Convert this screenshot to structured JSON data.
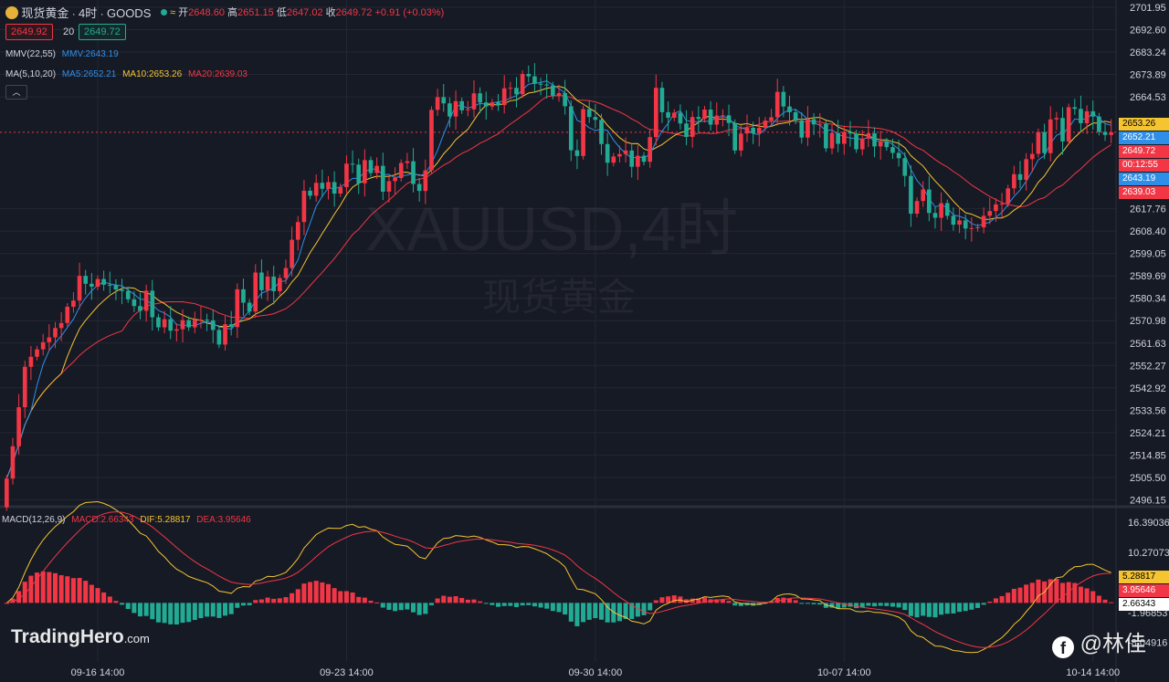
{
  "header": {
    "symbol_name": "现货黄金",
    "timeframe": "4时",
    "source": "GOODS",
    "open_label": "开",
    "open": "2648.60",
    "high_label": "高",
    "high": "2651.15",
    "low_label": "低",
    "low": "2647.02",
    "close_label": "收",
    "close": "2649.72",
    "change": "+0.91 (+0.03%)",
    "sell_price": "2649.92",
    "spread": "20",
    "buy_price": "2649.72"
  },
  "indicators": {
    "mmv_label": "MMV(22,55)",
    "mmv_value": "MMV:2643.19",
    "ma_label": "MA(5,10,20)",
    "ma5": "MA5:2652.21",
    "ma10": "MA10:2653.26",
    "ma20": "MA20:2639.03",
    "macd_label": "MACD(12,26,9)",
    "macd": "MACD:2.66343",
    "dif": "DIF:5.28817",
    "dea": "DEA:3.95646"
  },
  "watermark": {
    "line1": "XAUUSD,4时",
    "line2": "现货黄金"
  },
  "branding": {
    "left": "TradingHero",
    "left_suffix": ".com",
    "right": "@林佳"
  },
  "axis_tags": [
    {
      "text": "2653.26",
      "bg": "#f5c431",
      "fg": "#000000",
      "y": 2653.26
    },
    {
      "text": "2652.21",
      "bg": "#2f8fe8",
      "fg": "#ffffff",
      "y": 2652.21
    },
    {
      "text": "2649.72",
      "bg": "#f23645",
      "fg": "#ffffff",
      "y": 2649.72
    },
    {
      "text": "00:12:55",
      "bg": "#f23645",
      "fg": "#ffffff",
      "y": 2647.4
    },
    {
      "text": "2643.19",
      "bg": "#2f8fe8",
      "fg": "#ffffff",
      "y": 2643.19
    },
    {
      "text": "2639.03",
      "bg": "#f23645",
      "fg": "#ffffff",
      "y": 2639.03
    }
  ],
  "macd_tags": [
    {
      "text": "5.28817",
      "bg": "#f5c431",
      "fg": "#000000",
      "y": 5.28817
    },
    {
      "text": "3.95646",
      "bg": "#f23645",
      "fg": "#ffffff",
      "y": 3.95646
    },
    {
      "text": "2.66343",
      "bg": "#ffffff",
      "fg": "#000000",
      "y": 2.66343
    }
  ],
  "colors": {
    "up": "#f23645",
    "down": "#22ab94",
    "ma5": "#2f8fe8",
    "ma10": "#f5c431",
    "ma20": "#f23645",
    "macd_up": "#f23645",
    "macd_down": "#22ab94",
    "dif": "#f5c431",
    "dea": "#f23645"
  },
  "chart_data": [
    {
      "type": "candlestick",
      "title": "XAUUSD,4时",
      "y_ticks": [
        "2701.95",
        "2692.60",
        "2683.24",
        "2673.89",
        "2664.53",
        "2617.76",
        "2608.40",
        "2599.05",
        "2589.69",
        "2580.34",
        "2570.98",
        "2561.63",
        "2552.27",
        "2542.92",
        "2533.56",
        "2524.21",
        "2514.85",
        "2505.50",
        "2496.15"
      ],
      "ylim": [
        2494.0,
        2705.0
      ],
      "x_ticks": [
        {
          "label": "09-16 14:00",
          "index": 15
        },
        {
          "label": "09-23 14:00",
          "index": 56
        },
        {
          "label": "09-30 14:00",
          "index": 97
        },
        {
          "label": "10-07 14:00",
          "index": 138
        },
        {
          "label": "10-14 14:00",
          "index": 179
        }
      ],
      "closes": [
        2505.0,
        2518.5,
        2534.8,
        2551.7,
        2555.9,
        2559.0,
        2562.0,
        2564.0,
        2567.9,
        2570.0,
        2576.8,
        2579.4,
        2589.7,
        2586.4,
        2585.2,
        2588.4,
        2586.0,
        2585.8,
        2584.0,
        2583.4,
        2579.9,
        2577.1,
        2575.1,
        2583.5,
        2572.4,
        2568.2,
        2571.6,
        2566.8,
        2567.4,
        2571.2,
        2568.2,
        2571.3,
        2571.4,
        2571.1,
        2567.1,
        2561.0,
        2569.5,
        2568.3,
        2584.1,
        2578.5,
        2574.8,
        2591.1,
        2583.7,
        2589.4,
        2583.3,
        2588.8,
        2593.0,
        2604.8,
        2612.2,
        2625.3,
        2623.2,
        2628.6,
        2626.1,
        2628.9,
        2624.1,
        2626.8,
        2636.6,
        2636.2,
        2628.4,
        2638.1,
        2632.7,
        2635.7,
        2624.9,
        2629.3,
        2630.6,
        2636.9,
        2637.6,
        2628.1,
        2625.2,
        2633.8,
        2659.1,
        2664.4,
        2661.8,
        2656.3,
        2662.7,
        2658.9,
        2659.3,
        2666.0,
        2662.2,
        2660.5,
        2662.2,
        2661.1,
        2668.1,
        2668.3,
        2665.6,
        2674.1,
        2673.1,
        2670.0,
        2669.7,
        2669.3,
        2665.0,
        2666.1,
        2660.6,
        2642.2,
        2639.8,
        2659.4,
        2656.1,
        2654.9,
        2644.8,
        2637.0,
        2639.6,
        2640.6,
        2642.1,
        2635.3,
        2639.9,
        2637.4,
        2647.7,
        2668.3,
        2658.1,
        2655.8,
        2657.9,
        2653.4,
        2647.8,
        2656.1,
        2655.3,
        2659.2,
        2652.9,
        2656.7,
        2656.8,
        2653.6,
        2642.1,
        2649.2,
        2651.6,
        2649.3,
        2651.6,
        2654.6,
        2656.0,
        2666.6,
        2660.5,
        2658.1,
        2654.6,
        2647.5,
        2655.2,
        2653.0,
        2653.2,
        2643.0,
        2649.4,
        2644.9,
        2649.9,
        2649.2,
        2642.6,
        2647.1,
        2649.3,
        2643.8,
        2645.9,
        2643.5,
        2641.1,
        2638.9,
        2631.5,
        2615.7,
        2621.0,
        2625.8,
        2616.0,
        2614.0,
        2620.1,
        2614.8,
        2611.1,
        2612.9,
        2609.5,
        2609.7,
        2610.0,
        2614.8,
        2616.8,
        2619.6,
        2619.9,
        2626.3,
        2632.2,
        2629.8,
        2638.5,
        2640.7,
        2649.8,
        2641.0,
        2655.1,
        2655.7,
        2645.9,
        2660.2,
        2659.5,
        2653.5,
        2658.5,
        2656.3,
        2649.9,
        2648.6,
        2649.7
      ]
    },
    {
      "type": "bar",
      "title": "MACD(12,26,9)",
      "y_ticks": [
        "16.39036",
        "10.27073",
        "-1.96853",
        "-8.04916"
      ],
      "ylim": [
        -12.0,
        19.0
      ],
      "note": "values derived from closes"
    }
  ]
}
